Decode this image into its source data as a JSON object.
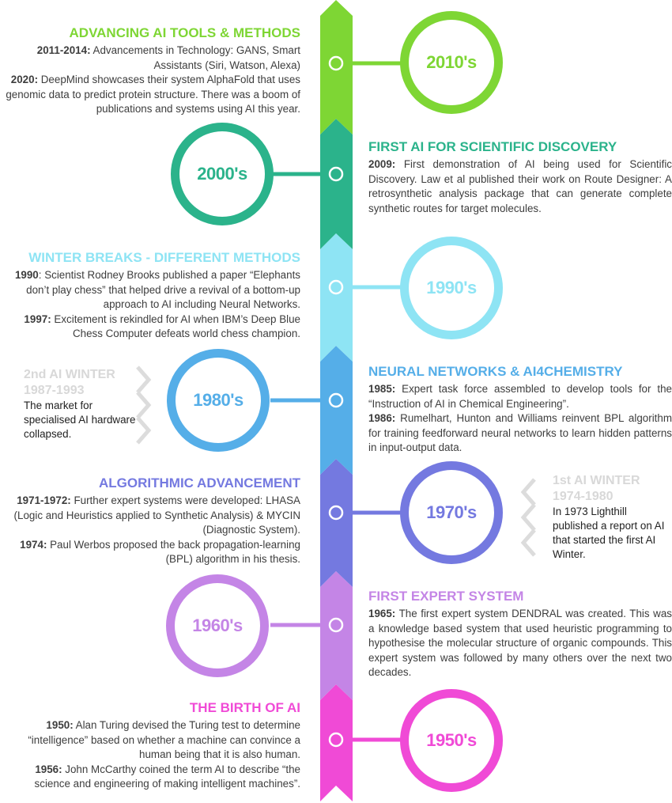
{
  "colors": {
    "c2010": "#7ed634",
    "c2000": "#2bb38b",
    "c1990": "#8ee4f4",
    "c1980": "#55aee8",
    "c1970": "#7479e0",
    "c1960": "#c485e6",
    "c1950": "#f04ad6",
    "winter": "#dcdcdc"
  },
  "decades": [
    {
      "label": "2010's"
    },
    {
      "label": "2000's"
    },
    {
      "label": "1990's"
    },
    {
      "label": "1980's"
    },
    {
      "label": "1970's"
    },
    {
      "label": "1960's"
    },
    {
      "label": "1950's"
    }
  ],
  "events": {
    "e2010": {
      "title": "ADVANCING AI TOOLS & METHODS",
      "items": [
        {
          "date": "2011-2014:",
          "text": " Advancements in Technology: GANS, Smart Assistants (Siri, Watson, Alexa)"
        },
        {
          "date": "2020:",
          "text": " DeepMind showcases their system AlphaFold that uses genomic data to predict protein structure. There was a boom of publications and systems using AI this year."
        }
      ]
    },
    "e2000": {
      "title": "FIRST AI FOR SCIENTIFIC DISCOVERY",
      "items": [
        {
          "date": "2009:",
          "text": " First demonstration of AI being used for Scientific Discovery. Law et al published their work on Route Designer: A retrosynthetic analysis package that can generate complete synthetic routes for target molecules."
        }
      ]
    },
    "e1990": {
      "title": "WINTER BREAKS - DIFFERENT METHODS",
      "items": [
        {
          "date": "1990",
          "text": ": Scientist Rodney Brooks published a paper “Elephants don’t play chess” that helped drive a revival of a bottom-up approach to AI including Neural Networks."
        },
        {
          "date": "1997:",
          "text": " Excitement is rekindled for AI when IBM’s Deep Blue Chess Computer defeats world chess champion."
        }
      ]
    },
    "e1980": {
      "title": "NEURAL NETWORKS & AI4CHEMISTRY",
      "items": [
        {
          "date": "1985:",
          "text": " Expert task force assembled to develop tools for the “Instruction of AI in Chemical Engineering”."
        },
        {
          "date": "1986:",
          "text": " Rumelhart, Hunton and Williams reinvent BPL algorithm for training feedforward neural networks to learn hidden patterns in input-output data."
        }
      ]
    },
    "e1970": {
      "title": "ALGORITHMIC ADVANCEMENT",
      "items": [
        {
          "date": "1971-1972:",
          "text": " Further expert systems were developed: LHASA (Logic and Heuristics applied to Synthetic Analysis) & MYCIN (Diagnostic System)."
        },
        {
          "date": "1974:",
          "text": " Paul Werbos proposed the back propagation-learning (BPL) algorithm in his thesis."
        }
      ]
    },
    "e1960": {
      "title": "FIRST EXPERT SYSTEM",
      "items": [
        {
          "date": "1965:",
          "text": " The first expert system DENDRAL was created. This was a knowledge based system that used heuristic programming to hypothesise the molecular structure of organic compounds. This expert system was followed by many others over the next two decades."
        }
      ]
    },
    "e1950": {
      "title": "THE BIRTH OF AI",
      "items": [
        {
          "date": "1950:",
          "text": " Alan Turing devised the Turing test to determine “intelligence” based on whether a machine can convince a human being that it is also human."
        },
        {
          "date": "1956:",
          "text": " John McCarthy coined the term AI to describe “the science and engineering of making intelligent machines”."
        }
      ]
    }
  },
  "winters": {
    "second": {
      "title": "2nd AI WINTER",
      "years": "1987-1993",
      "text": "The market for specialised AI hardware collapsed."
    },
    "first": {
      "title": "1st AI WINTER",
      "years": "1974-1980",
      "text": "In 1973 Lighthill published a report on AI that started the first AI Winter."
    }
  }
}
